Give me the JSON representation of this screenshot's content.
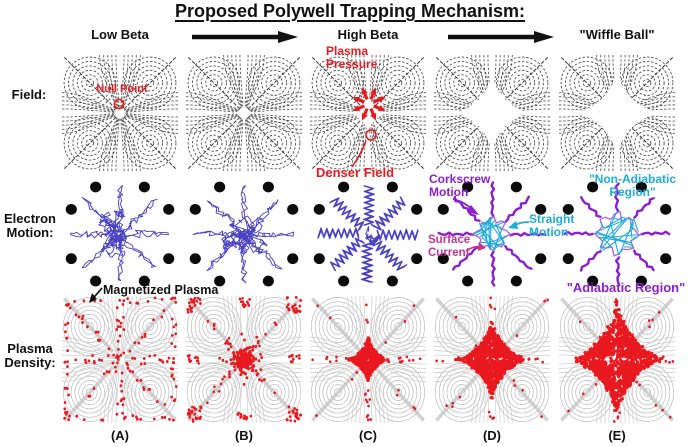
{
  "title": "Proposed Polywell Trapping Mechanism:",
  "header": {
    "low_beta": "Low Beta",
    "high_beta": "High Beta",
    "wiffle_ball": "\"Wiffle Ball\""
  },
  "row_labels": {
    "field": "Field:",
    "electron_line1": "Electron",
    "electron_line2": "Motion:",
    "plasma_line1": "Plasma",
    "plasma_line2": "Density:"
  },
  "column_labels": [
    "(A)",
    "(B)",
    "(C)",
    "(D)",
    "(E)"
  ],
  "annotations": {
    "null_point": "Null Point",
    "plasma_pressure_line1": "Plasma",
    "plasma_pressure_line2": "Pressure",
    "denser_field": "Denser Field",
    "magnetized_plasma": "Magnetized Plasma",
    "corkscrew_line1": "Corkscrew",
    "corkscrew_line2": "Motion",
    "straight_line1": "Straight",
    "straight_line2": "Motion",
    "surface_line1": "Surface",
    "surface_line2": "Current",
    "non_adiabatic_line1": "\"Non-Adiabatic",
    "non_adiabatic_line2": "Region\"",
    "adiabatic_region": "\"Adiabatic Region\""
  },
  "colors": {
    "annotation_red": "#e8191f",
    "purple": "#8a1fd0",
    "light_purple": "#b467d4",
    "cyan": "#1fabdc",
    "magenta": "#c03890",
    "electron_blue": "#4a40c2",
    "field_ink": "#3f3f3f",
    "density_gray": "#bdbdbd",
    "coil_dot_black": "#0b0b0b"
  },
  "panels": {
    "field": [
      {
        "column": "A",
        "open_radius": 0
      },
      {
        "column": "B",
        "open_radius": 9
      },
      {
        "column": "C",
        "open_radius": 17
      },
      {
        "column": "D",
        "open_radius": 33
      },
      {
        "column": "E",
        "open_radius": 36
      }
    ],
    "electron": [
      {
        "column": "A",
        "style": "tangle"
      },
      {
        "column": "B",
        "style": "tangle"
      },
      {
        "column": "C",
        "style": "spokes"
      },
      {
        "column": "D",
        "style": "chords",
        "core_radius": 15
      },
      {
        "column": "E",
        "style": "chords",
        "core_radius": 20
      }
    ],
    "density": [
      {
        "column": "A",
        "style": "sparse"
      },
      {
        "column": "B",
        "style": "cloud"
      },
      {
        "column": "C",
        "style": "star",
        "star_size": 19
      },
      {
        "column": "D",
        "style": "star",
        "star_size": 33
      },
      {
        "column": "E",
        "style": "star",
        "star_size": 43
      }
    ]
  }
}
